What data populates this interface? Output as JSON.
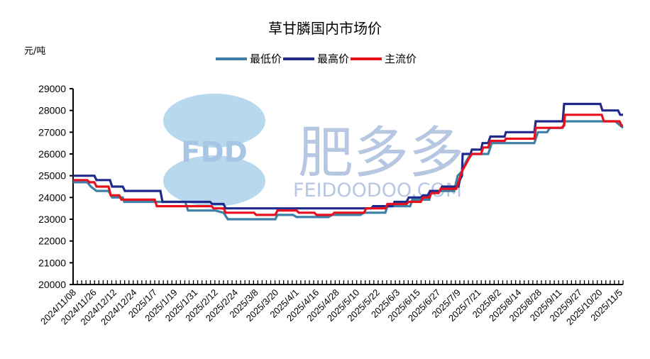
{
  "title": "草甘膦国内市场价",
  "unit_label": "元/吨",
  "watermark": {
    "logo_text": "FDD",
    "brand_cn": "肥多多",
    "brand_en": "FEIDOODOO.COM"
  },
  "legend": [
    {
      "name": "最低价",
      "color": "#3d7fa6"
    },
    {
      "name": "最高价",
      "color": "#1f2a8c"
    },
    {
      "name": "主流价",
      "color": "#e8101c"
    }
  ],
  "chart_data": {
    "type": "line",
    "title": "草甘膦国内市场价",
    "ylabel": "元/吨",
    "xlabel": "",
    "ylim": [
      20000,
      29000
    ],
    "yticks": [
      20000,
      21000,
      22000,
      23000,
      24000,
      25000,
      26000,
      27000,
      28000,
      29000
    ],
    "grid": false,
    "legend_position": "top",
    "categories": [
      "2024/11/08",
      "2024/11/26",
      "2024/12/12",
      "2024/12/24",
      "2025/1/7",
      "2025/1/19",
      "2025/1/31",
      "2025/2/12",
      "2025/2/24",
      "2025/3/8",
      "2025/3/20",
      "2025/4/1",
      "2025/4/16",
      "2025/4/28",
      "2025/5/10",
      "2025/5/22",
      "2025/6/3",
      "2025/6/15",
      "2025/6/27",
      "2025/7/9",
      "2025/7/21",
      "2025/8/2",
      "2025/8/14",
      "2025/8/28",
      "2025/9/11",
      "2025/9/27",
      "2025/10/20",
      "2025/11/5"
    ],
    "series": [
      {
        "name": "最低价",
        "color": "#3d7fa6",
        "steps": [
          [
            0,
            24700
          ],
          [
            20,
            24700
          ],
          [
            25,
            24500
          ],
          [
            33,
            24300
          ],
          [
            50,
            24300
          ],
          [
            55,
            24000
          ],
          [
            70,
            24000
          ],
          [
            72,
            23800
          ],
          [
            158,
            23800
          ],
          [
            162,
            23400
          ],
          [
            200,
            23400
          ],
          [
            212,
            23300
          ],
          [
            218,
            23000
          ],
          [
            285,
            23000
          ],
          [
            288,
            23200
          ],
          [
            310,
            23200
          ],
          [
            315,
            23100
          ],
          [
            360,
            23100
          ],
          [
            365,
            23200
          ],
          [
            405,
            23200
          ],
          [
            410,
            23300
          ],
          [
            440,
            23300
          ],
          [
            443,
            23600
          ],
          [
            475,
            23600
          ],
          [
            478,
            23900
          ],
          [
            502,
            23900
          ],
          [
            505,
            24300
          ],
          [
            530,
            24300
          ],
          [
            537,
            24300
          ],
          [
            542,
            25000
          ],
          [
            548,
            25200
          ],
          [
            553,
            25600
          ],
          [
            560,
            26000
          ],
          [
            585,
            26000
          ],
          [
            590,
            26500
          ],
          [
            605,
            26500
          ],
          [
            608,
            26500
          ],
          [
            650,
            26500
          ],
          [
            655,
            27000
          ],
          [
            668,
            27000
          ],
          [
            672,
            27200
          ],
          [
            690,
            27200
          ],
          [
            693,
            27500
          ],
          [
            760,
            27500
          ],
          [
            764,
            27500
          ],
          [
            775,
            27200
          ]
        ]
      },
      {
        "name": "最高价",
        "color": "#1f2a8c",
        "steps": [
          [
            0,
            25000
          ],
          [
            30,
            25000
          ],
          [
            33,
            24800
          ],
          [
            52,
            24800
          ],
          [
            55,
            24500
          ],
          [
            70,
            24500
          ],
          [
            73,
            24300
          ],
          [
            123,
            24300
          ],
          [
            126,
            23800
          ],
          [
            193,
            23800
          ],
          [
            196,
            23700
          ],
          [
            212,
            23700
          ],
          [
            215,
            23500
          ],
          [
            420,
            23500
          ],
          [
            423,
            23600
          ],
          [
            450,
            23600
          ],
          [
            453,
            23800
          ],
          [
            470,
            23800
          ],
          [
            473,
            24000
          ],
          [
            490,
            24000
          ],
          [
            493,
            24100
          ],
          [
            500,
            24100
          ],
          [
            503,
            24300
          ],
          [
            517,
            24300
          ],
          [
            520,
            24500
          ],
          [
            543,
            24500
          ],
          [
            545,
            24800
          ],
          [
            548,
            25000
          ],
          [
            549,
            26000
          ],
          [
            560,
            26000
          ],
          [
            562,
            26200
          ],
          [
            575,
            26200
          ],
          [
            577,
            26500
          ],
          [
            585,
            26500
          ],
          [
            588,
            26800
          ],
          [
            608,
            26800
          ],
          [
            610,
            27000
          ],
          [
            650,
            27000
          ],
          [
            652,
            27500
          ],
          [
            690,
            27500
          ],
          [
            692,
            28300
          ],
          [
            743,
            28300
          ],
          [
            746,
            28000
          ],
          [
            768,
            28000
          ],
          [
            771,
            27800
          ],
          [
            775,
            27800
          ]
        ]
      },
      {
        "name": "主流价",
        "color": "#e8101c",
        "steps": [
          [
            0,
            24800
          ],
          [
            20,
            24800
          ],
          [
            23,
            24700
          ],
          [
            30,
            24700
          ],
          [
            33,
            24500
          ],
          [
            50,
            24500
          ],
          [
            53,
            24100
          ],
          [
            65,
            24100
          ],
          [
            68,
            23900
          ],
          [
            115,
            23900
          ],
          [
            118,
            23600
          ],
          [
            165,
            23600
          ],
          [
            168,
            23600
          ],
          [
            195,
            23600
          ],
          [
            198,
            23500
          ],
          [
            212,
            23500
          ],
          [
            215,
            23300
          ],
          [
            255,
            23300
          ],
          [
            258,
            23200
          ],
          [
            285,
            23200
          ],
          [
            288,
            23400
          ],
          [
            315,
            23400
          ],
          [
            318,
            23300
          ],
          [
            340,
            23300
          ],
          [
            343,
            23200
          ],
          [
            365,
            23200
          ],
          [
            368,
            23300
          ],
          [
            410,
            23300
          ],
          [
            413,
            23500
          ],
          [
            440,
            23500
          ],
          [
            443,
            23700
          ],
          [
            470,
            23700
          ],
          [
            473,
            23800
          ],
          [
            490,
            23800
          ],
          [
            493,
            24000
          ],
          [
            502,
            24000
          ],
          [
            505,
            24200
          ],
          [
            515,
            24200
          ],
          [
            518,
            24400
          ],
          [
            540,
            24400
          ],
          [
            543,
            24700
          ],
          [
            548,
            25200
          ],
          [
            553,
            25500
          ],
          [
            558,
            25800
          ],
          [
            562,
            26000
          ],
          [
            575,
            26000
          ],
          [
            578,
            26300
          ],
          [
            585,
            26300
          ],
          [
            588,
            26600
          ],
          [
            608,
            26600
          ],
          [
            610,
            26700
          ],
          [
            650,
            26700
          ],
          [
            652,
            27200
          ],
          [
            688,
            27200
          ],
          [
            692,
            27300
          ],
          [
            693,
            27800
          ],
          [
            745,
            27800
          ],
          [
            748,
            27500
          ],
          [
            770,
            27500
          ],
          [
            773,
            27300
          ],
          [
            775,
            27300
          ]
        ]
      }
    ]
  }
}
